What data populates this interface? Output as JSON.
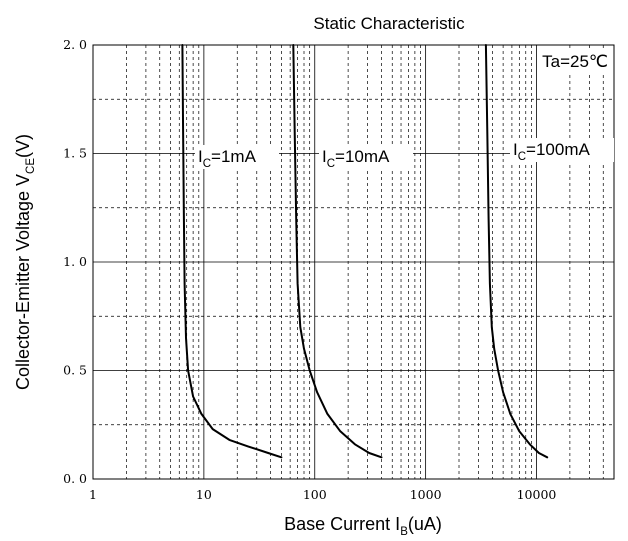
{
  "chart_data": {
    "type": "line",
    "title": "Static Characteristic",
    "xlabel": {
      "main": "Base Current  I",
      "sub": "B",
      "suffix": "(uA)"
    },
    "ylabel": {
      "main": "Collector-Emitter Voltage  V",
      "sub": "CE",
      "suffix": "(V)"
    },
    "x_scale": "log",
    "xlim": [
      1,
      50000
    ],
    "ylim": [
      0,
      2.0
    ],
    "x_ticks": [
      1,
      10,
      100,
      1000,
      10000
    ],
    "x_tick_labels": [
      "1",
      "10",
      "100",
      "1000",
      "10000"
    ],
    "y_ticks": [
      0,
      0.5,
      1.0,
      1.5,
      2.0
    ],
    "y_tick_labels": [
      "0. 0",
      "0. 5",
      "1. 0",
      "1. 5",
      "2. 0"
    ],
    "y_minor": [
      0.25,
      0.75,
      1.25,
      1.75
    ],
    "grid": true,
    "legend": "none",
    "condition_label": "Ta=25℃",
    "curve_color": "#000000",
    "series": [
      {
        "label_main": "I",
        "label_sub": "C",
        "label_suffix": "=1mA",
        "x": [
          6.4,
          6.5,
          6.6,
          6.7,
          6.9,
          7.2,
          8.0,
          9.5,
          12,
          17,
          25,
          38,
          50
        ],
        "y": [
          2.0,
          1.6,
          1.2,
          0.9,
          0.65,
          0.5,
          0.38,
          0.3,
          0.23,
          0.18,
          0.15,
          0.12,
          0.1
        ]
      },
      {
        "label_main": "I",
        "label_sub": "C",
        "label_suffix": "=10mA",
        "x": [
          64,
          66,
          68,
          70,
          74,
          80,
          90,
          105,
          130,
          170,
          230,
          310,
          400
        ],
        "y": [
          2.0,
          1.6,
          1.2,
          0.9,
          0.7,
          0.6,
          0.5,
          0.4,
          0.3,
          0.22,
          0.16,
          0.12,
          0.1
        ]
      },
      {
        "label_main": "I",
        "label_sub": "C",
        "label_suffix": "=100mA",
        "x": [
          3500,
          3600,
          3700,
          3800,
          3950,
          4150,
          4500,
          5000,
          5800,
          7000,
          8700,
          10500,
          12500
        ],
        "y": [
          2.0,
          1.6,
          1.2,
          0.9,
          0.7,
          0.6,
          0.5,
          0.4,
          0.3,
          0.22,
          0.16,
          0.12,
          0.1
        ]
      }
    ]
  }
}
